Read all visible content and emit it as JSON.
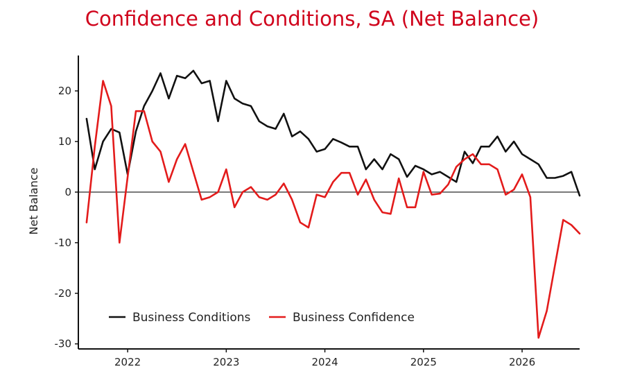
{
  "chart_data": {
    "type": "line",
    "title": "Confidence and Conditions, SA (Net Balance)",
    "xlabel": "",
    "ylabel": "Net Balance",
    "xlim": [
      "2021-07",
      "2026-08"
    ],
    "ylim": [
      -31,
      27
    ],
    "yticks": [
      20,
      10,
      0,
      -10,
      -20,
      -30
    ],
    "xticks": [
      {
        "label": "2022",
        "date": "2022-01"
      },
      {
        "label": "2023",
        "date": "2023-01"
      },
      {
        "label": "2024",
        "date": "2024-01"
      },
      {
        "label": "2025",
        "date": "2025-01"
      },
      {
        "label": "2026",
        "date": "2026-01"
      }
    ],
    "zero_line": true,
    "grid": false,
    "legend_position": "bottom-left",
    "dates": [
      "2021-08",
      "2021-09",
      "2021-10",
      "2021-11",
      "2021-12",
      "2022-01",
      "2022-02",
      "2022-03",
      "2022-04",
      "2022-05",
      "2022-06",
      "2022-07",
      "2022-08",
      "2022-09",
      "2022-10",
      "2022-11",
      "2022-12",
      "2023-01",
      "2023-02",
      "2023-03",
      "2023-04",
      "2023-05",
      "2023-06",
      "2023-07",
      "2023-08",
      "2023-09",
      "2023-10",
      "2023-11",
      "2023-12",
      "2024-01",
      "2024-02",
      "2024-03",
      "2024-04",
      "2024-05",
      "2024-06",
      "2024-07",
      "2024-08",
      "2024-09",
      "2024-10",
      "2024-11",
      "2024-12",
      "2025-01",
      "2025-02",
      "2025-03",
      "2025-04",
      "2025-05",
      "2025-06",
      "2025-07",
      "2025-08",
      "2025-09",
      "2025-10",
      "2025-11",
      "2025-12",
      "2026-01",
      "2026-02",
      "2026-03",
      "2026-04",
      "2026-05",
      "2026-06",
      "2026-07",
      "2026-08"
    ],
    "series": [
      {
        "name": "Business Conditions",
        "color": "#111111",
        "values": [
          14.5,
          4.5,
          10,
          12.5,
          11.8,
          3.5,
          12,
          17,
          20,
          23.5,
          18.5,
          23,
          22.5,
          24,
          21.5,
          22,
          14,
          22,
          18.5,
          17.5,
          17,
          14,
          13,
          12.5,
          15.5,
          11,
          12,
          10.5,
          8,
          8.5,
          10.5,
          9.8,
          9,
          9,
          4.5,
          6.5,
          4.5,
          7.5,
          6.5,
          3,
          5.2,
          4.5,
          3.5,
          4,
          3,
          2,
          8,
          5.7,
          9,
          9,
          11,
          8,
          10,
          7.5,
          6.5,
          5.5,
          2.8,
          2.8,
          3.2,
          4,
          -0.7
        ]
      },
      {
        "name": "Business Confidence",
        "color": "#e31b1b",
        "values": [
          -6,
          9,
          22,
          17,
          -10,
          3,
          16,
          16,
          10,
          8,
          2,
          6.5,
          9.5,
          4,
          -1.5,
          -1,
          0,
          4.5,
          -3,
          0,
          1,
          -1,
          -1.5,
          -0.5,
          1.7,
          -1.5,
          -6,
          -7,
          -0.5,
          -1,
          2,
          3.8,
          3.8,
          -0.5,
          2.5,
          -1.5,
          -4,
          -4.3,
          2.7,
          -3,
          -3,
          4,
          -0.5,
          -0.3,
          1.5,
          5,
          6.5,
          7.5,
          5.5,
          5.5,
          4.5,
          -0.5,
          0.5,
          3.5,
          -1,
          -28.8,
          -23.5,
          -14.5,
          -5.5,
          -6.5,
          -8.2
        ]
      }
    ]
  }
}
